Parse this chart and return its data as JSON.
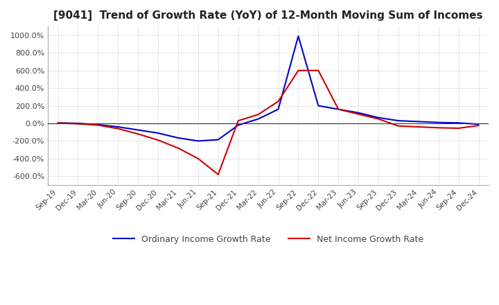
{
  "title": "[9041]  Trend of Growth Rate (YoY) of 12-Month Moving Sum of Incomes",
  "title_fontsize": 11,
  "background_color": "#ffffff",
  "plot_bg_color": "#ffffff",
  "grid_color": "#aaaaaa",
  "ordinary_color": "#0000cc",
  "net_color": "#cc0000",
  "ordinary_label": "Ordinary Income Growth Rate",
  "net_label": "Net Income Growth Rate",
  "ylim": [
    -700,
    1100
  ],
  "yticks": [
    -600,
    -400,
    -200,
    0,
    200,
    400,
    600,
    800,
    1000
  ],
  "ytick_labels": [
    "-600.0%",
    "-400.0%",
    "-200.0%",
    "0.0%",
    "200.0%",
    "400.0%",
    "600.0%",
    "800.0%",
    "1000.0%"
  ],
  "x_labels": [
    "Sep-19",
    "Dec-19",
    "Mar-20",
    "Jun-20",
    "Sep-20",
    "Dec-20",
    "Mar-21",
    "Jun-21",
    "Sep-21",
    "Dec-21",
    "Mar-22",
    "Jun-22",
    "Sep-22",
    "Dec-22",
    "Mar-23",
    "Jun-23",
    "Sep-23",
    "Dec-23",
    "Mar-24",
    "Jun-24",
    "Sep-24",
    "Dec-24"
  ],
  "ordinary_values": [
    5,
    0,
    -15,
    -40,
    -75,
    -110,
    -165,
    -200,
    -185,
    -20,
    50,
    160,
    990,
    200,
    160,
    120,
    65,
    30,
    20,
    10,
    5,
    -10
  ],
  "net_values": [
    3,
    -5,
    -20,
    -60,
    -120,
    -190,
    -280,
    -400,
    -580,
    30,
    100,
    250,
    600,
    600,
    160,
    105,
    50,
    -30,
    -40,
    -50,
    -55,
    -25
  ]
}
